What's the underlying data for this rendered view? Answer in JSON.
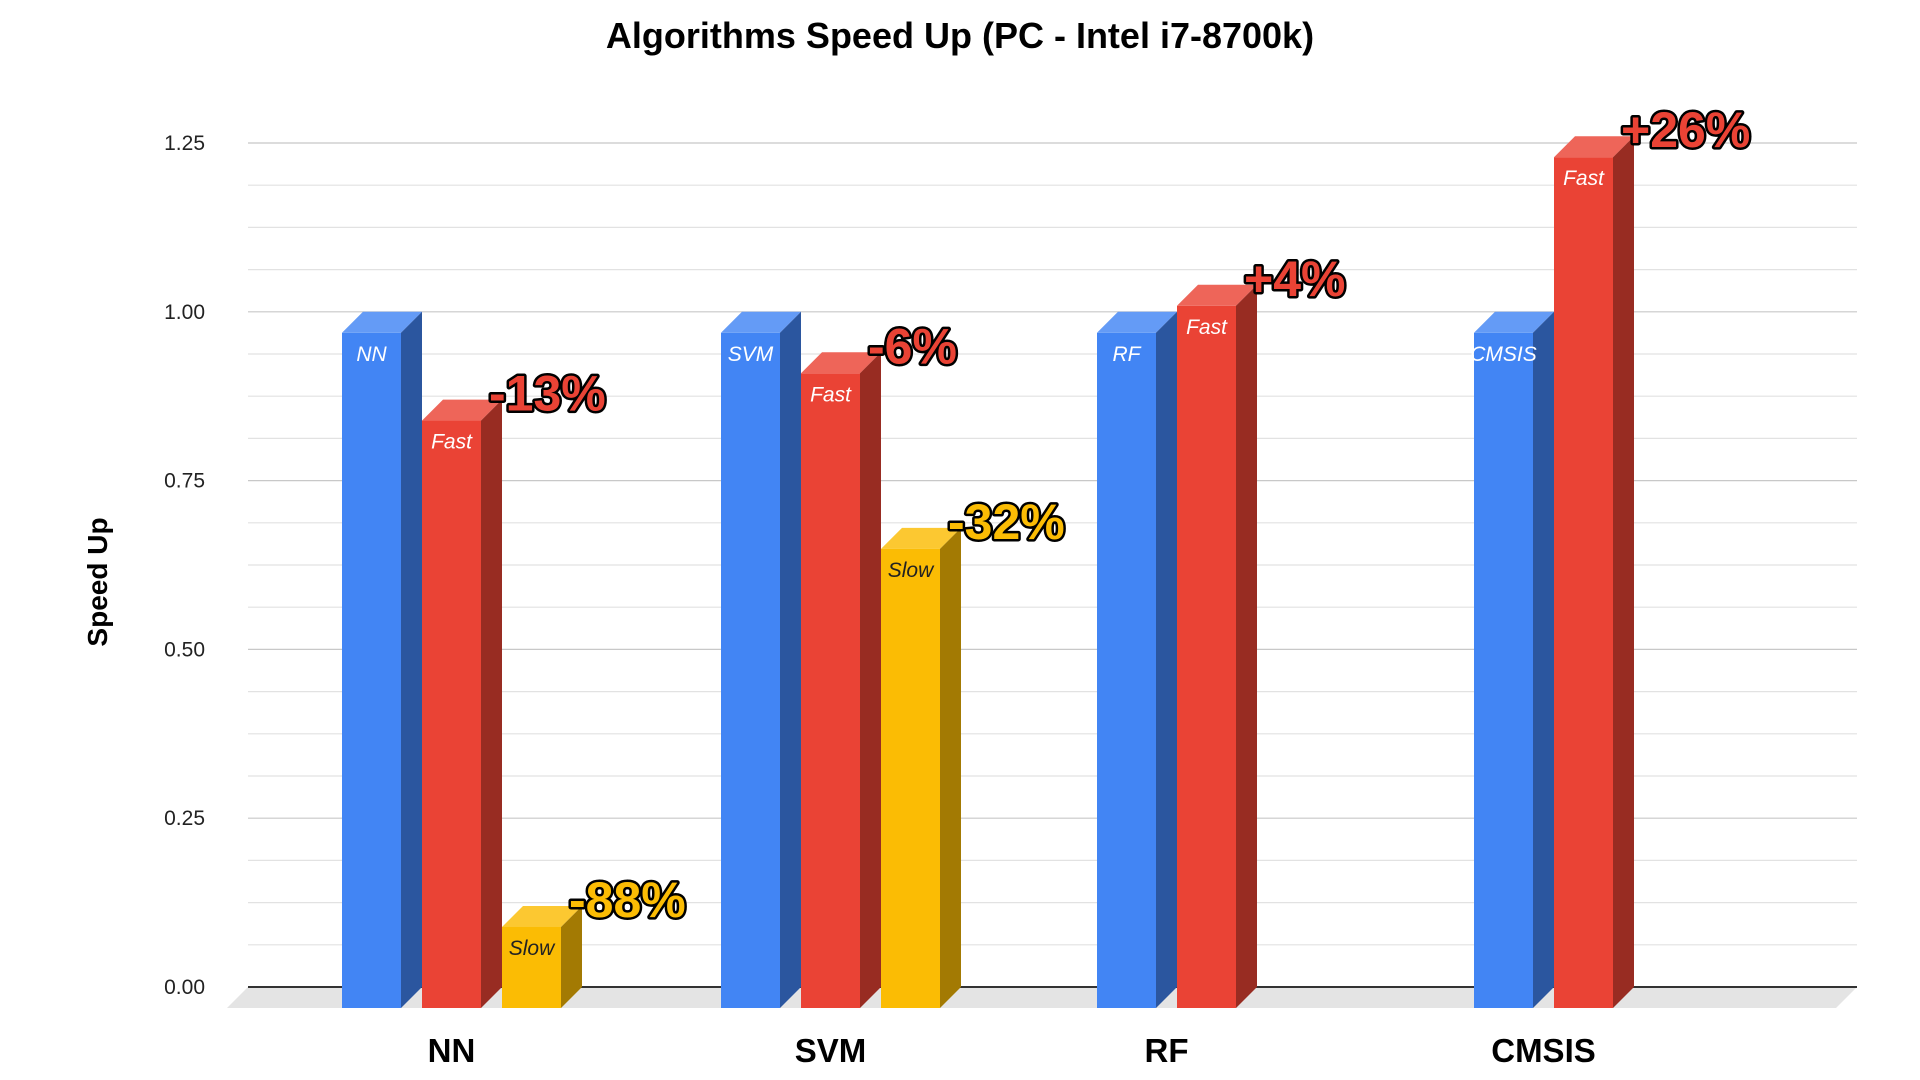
{
  "chart_data": {
    "type": "bar",
    "title": "Algorithms Speed Up (PC - Intel i7-8700k)",
    "ylabel": "Speed Up",
    "xlabel": "",
    "ylim": [
      0,
      1.25
    ],
    "yticks": [
      "0.00",
      "0.25",
      "0.50",
      "0.75",
      "1.00",
      "1.25"
    ],
    "grid": true,
    "categories": [
      "NN",
      "SVM",
      "RF",
      "CMSIS"
    ],
    "colors": {
      "blue": "#4285f4",
      "red": "#ea4335",
      "yellow": "#fbbc04"
    },
    "groups": [
      {
        "category": "NN",
        "bars": [
          {
            "label": "NN",
            "value": 1.0,
            "color": "blue"
          },
          {
            "label": "Fast",
            "value": 0.87,
            "color": "red",
            "annotation": "-13%"
          },
          {
            "label": "Slow",
            "value": 0.12,
            "color": "yellow",
            "annotation": "-88%"
          }
        ]
      },
      {
        "category": "SVM",
        "bars": [
          {
            "label": "SVM",
            "value": 1.0,
            "color": "blue"
          },
          {
            "label": "Fast",
            "value": 0.94,
            "color": "red",
            "annotation": "-6%"
          },
          {
            "label": "Slow",
            "value": 0.68,
            "color": "yellow",
            "annotation": "-32%"
          }
        ]
      },
      {
        "category": "RF",
        "bars": [
          {
            "label": "RF",
            "value": 1.0,
            "color": "blue"
          },
          {
            "label": "Fast",
            "value": 1.04,
            "color": "red",
            "annotation": "+4%"
          }
        ]
      },
      {
        "category": "CMSIS",
        "bars": [
          {
            "label": "CMSIS",
            "value": 1.0,
            "color": "blue"
          },
          {
            "label": "Fast",
            "value": 1.26,
            "color": "red",
            "annotation": "+26%"
          }
        ]
      }
    ]
  }
}
